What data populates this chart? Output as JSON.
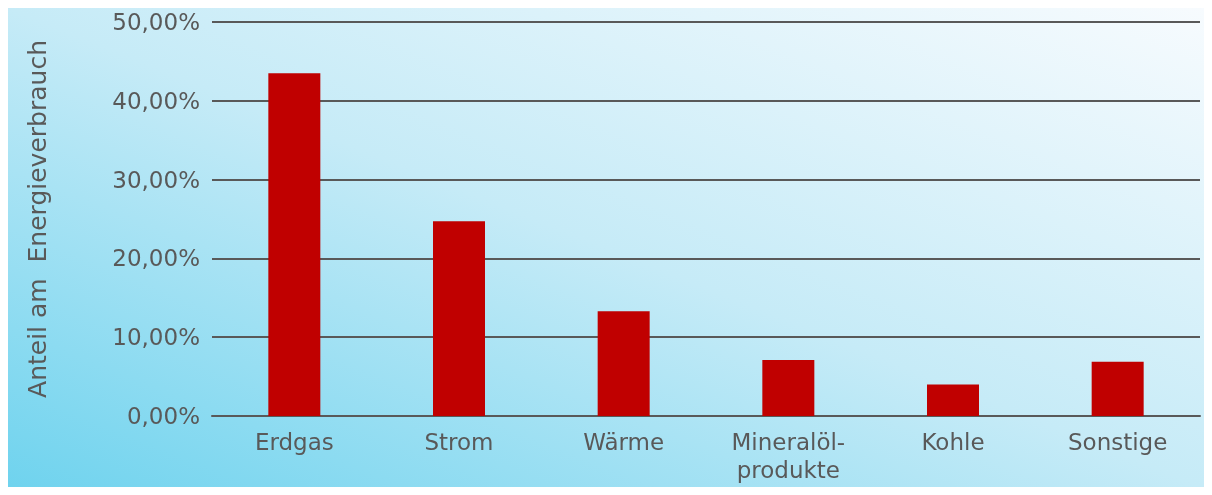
{
  "chart_data": {
    "type": "bar",
    "ylabel": "Anteil am  Energieverbrauch",
    "categories": [
      "Erdgas",
      "Strom",
      "Wärme",
      "Mineralöl-\nprodukte",
      "Kohle",
      "Sonstige"
    ],
    "values": [
      43.5,
      24.7,
      13.3,
      7.1,
      4.0,
      6.9
    ],
    "color": "#c00000",
    "ylim": [
      0,
      50
    ],
    "yticks": [
      {
        "value": 0,
        "label": "0,00%"
      },
      {
        "value": 10,
        "label": "10,00%"
      },
      {
        "value": 20,
        "label": "20,00%"
      },
      {
        "value": 30,
        "label": "30,00%"
      },
      {
        "value": 40,
        "label": "40,00%"
      },
      {
        "value": 50,
        "label": "50,00%"
      }
    ],
    "grid": "y"
  }
}
